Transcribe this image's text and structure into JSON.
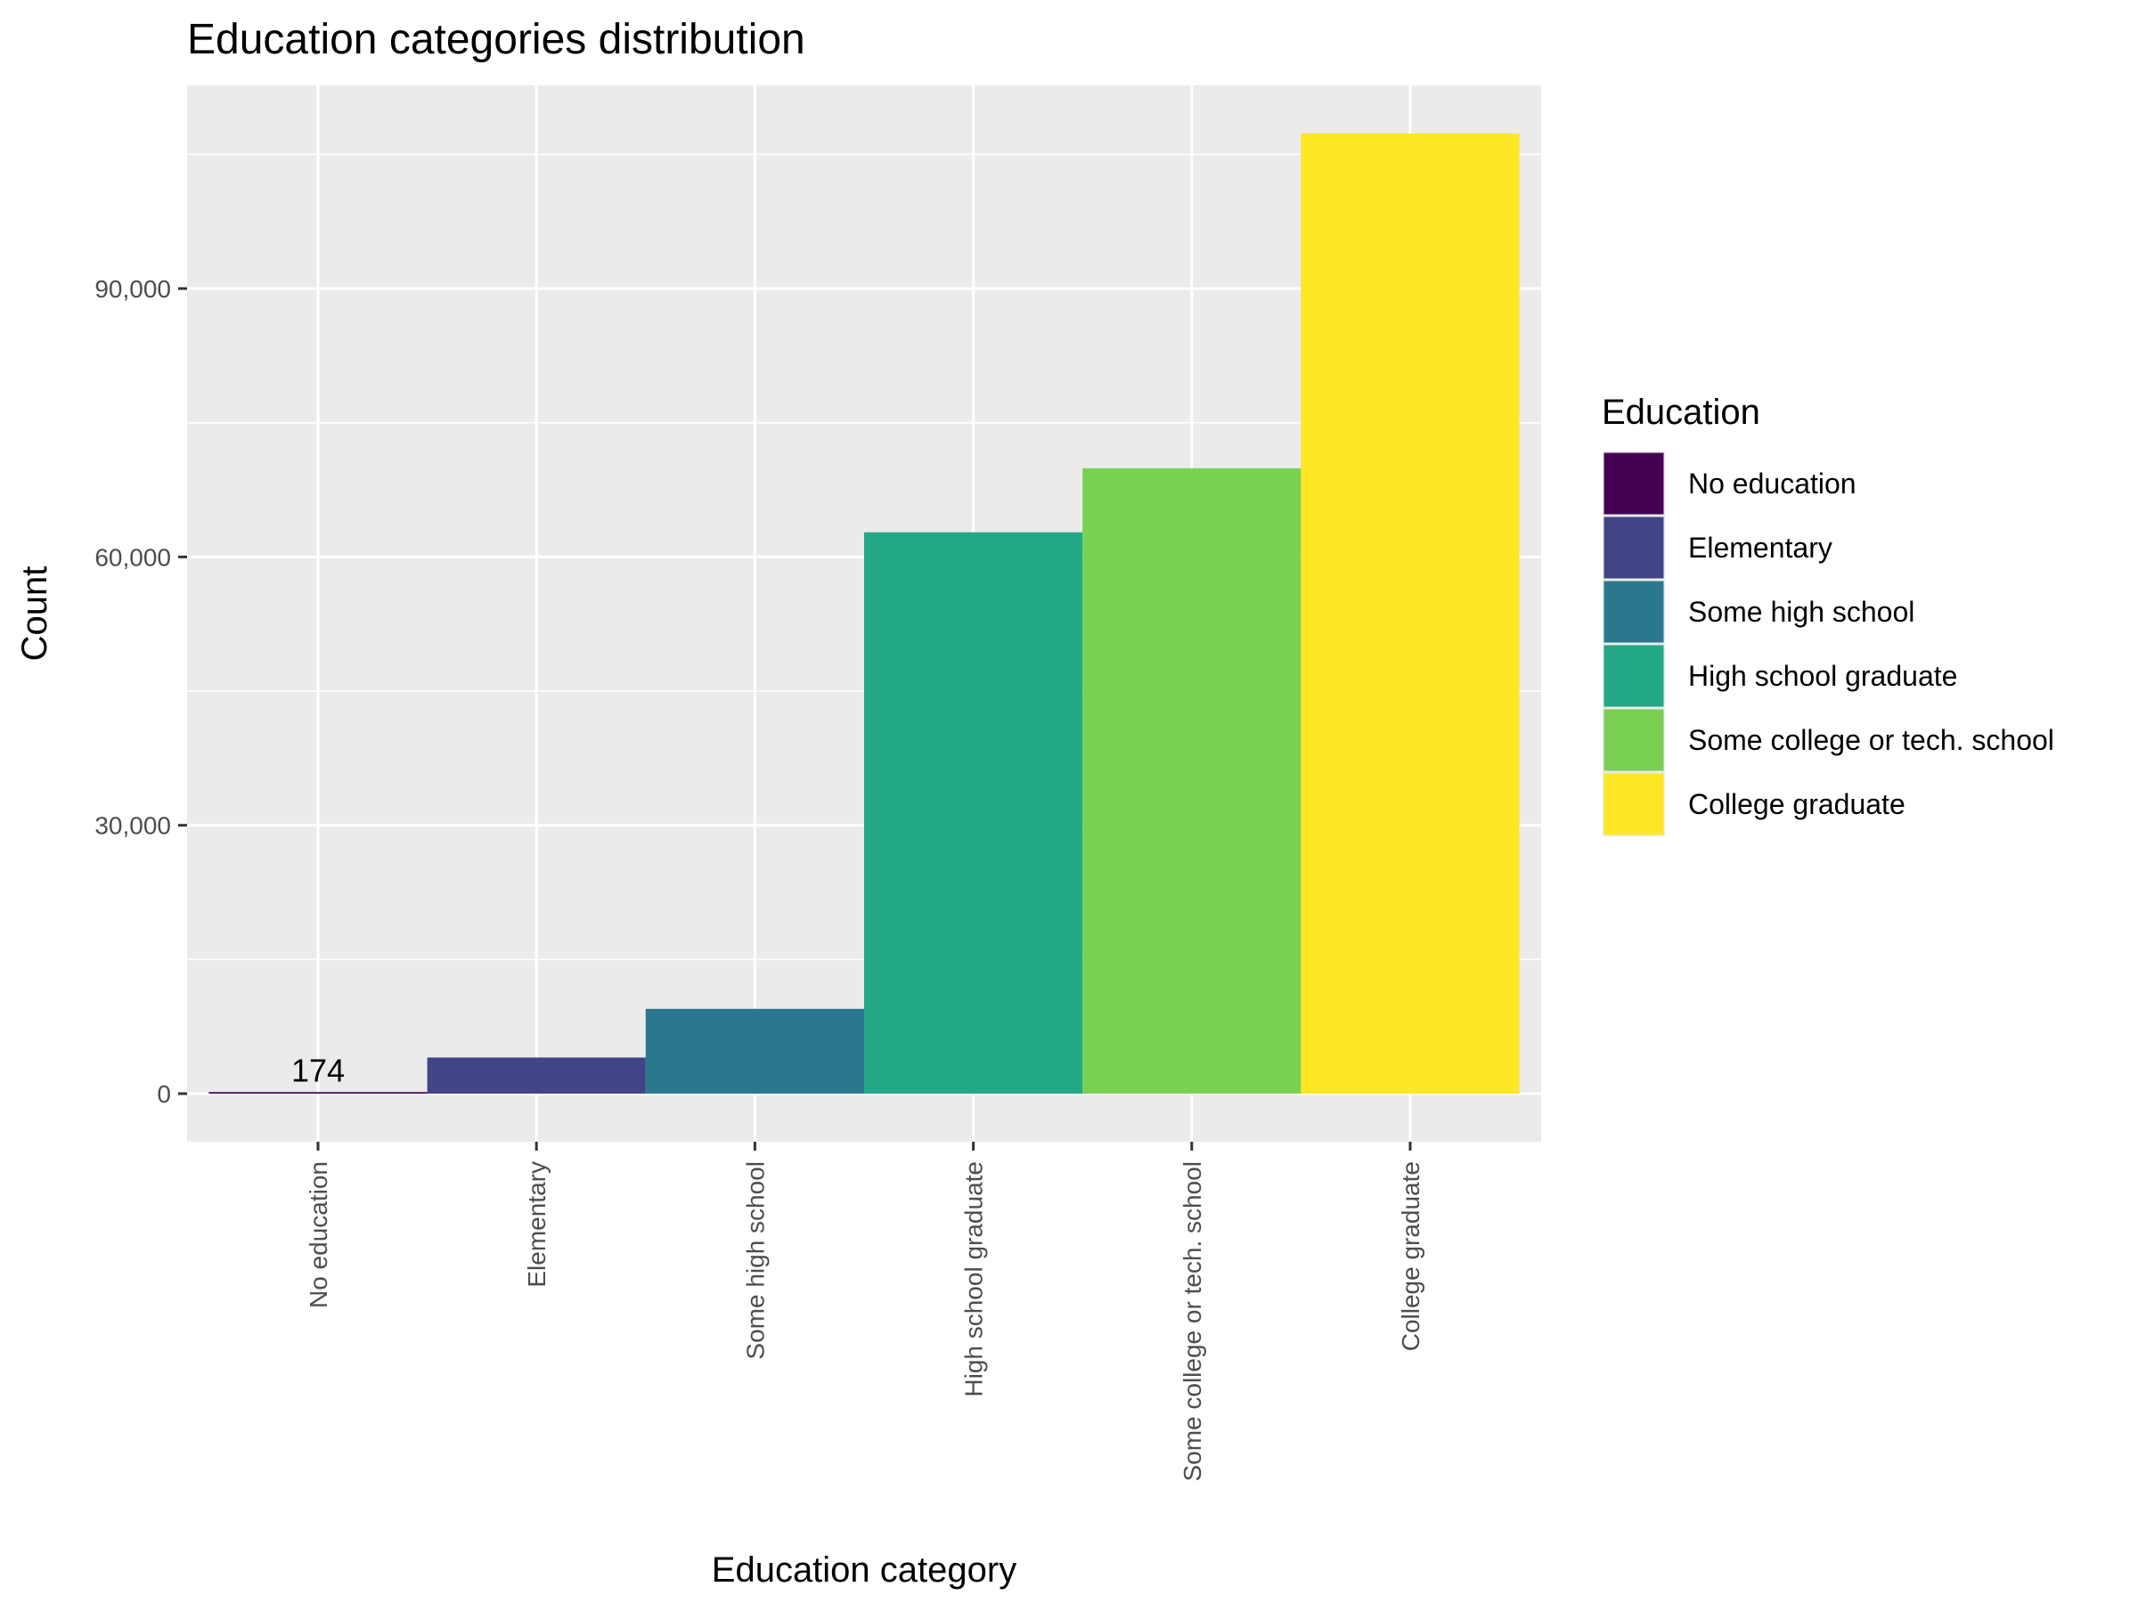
{
  "chart_data": {
    "type": "bar",
    "title": "Education categories distribution",
    "xlabel": "Education category",
    "ylabel": "Count",
    "categories": [
      "No education",
      "Elementary",
      "Some high school",
      "High school graduate",
      "Some college or tech. school",
      "College graduate"
    ],
    "values": [
      174,
      4040,
      9480,
      62750,
      69910,
      107330
    ],
    "colors": [
      "#440154",
      "#414487",
      "#2A788E",
      "#22A884",
      "#7AD151",
      "#FDE725"
    ],
    "data_labels": [
      {
        "category": "No education",
        "text": "174"
      }
    ],
    "y_ticks": [
      0,
      30000,
      60000,
      90000
    ],
    "y_tick_labels": [
      "0",
      "30,000",
      "60,000",
      "90,000"
    ],
    "ylim": [
      -5370,
      112700
    ],
    "grid": true,
    "legend": {
      "title": "Education",
      "position": "right",
      "entries": [
        "No education",
        "Elementary",
        "Some high school",
        "High school graduate",
        "Some college or tech. school",
        "College graduate"
      ]
    }
  }
}
